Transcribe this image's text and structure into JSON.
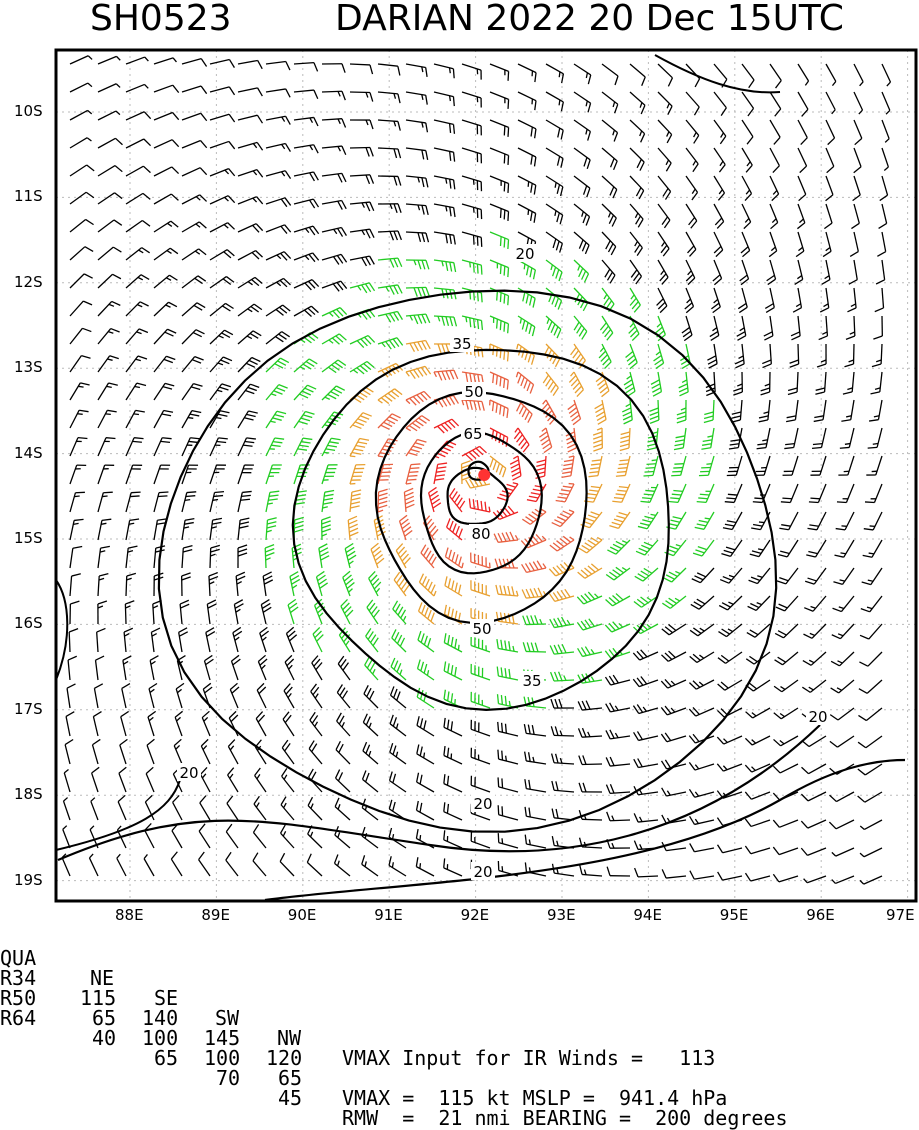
{
  "header": {
    "storm_id": "SH0523",
    "title": "DARIAN 2022 20 Dec 15UTC"
  },
  "axes": {
    "lat_labels": [
      "10S",
      "11S",
      "12S",
      "13S",
      "14S",
      "15S",
      "16S",
      "17S",
      "18S",
      "19S"
    ],
    "lon_labels": [
      "88E",
      "89E",
      "90E",
      "91E",
      "92E",
      "93E",
      "94E",
      "95E",
      "96E",
      "97E"
    ]
  },
  "contour_labels": [
    "20",
    "35",
    "50",
    "65",
    "80",
    "50",
    "35",
    "20",
    "20",
    "20"
  ],
  "colors": {
    "below34": "#000000",
    "gale34": "#22cc22",
    "storm50": "#e8a030",
    "hurricane64": "#e86040",
    "intense": "#ee2222",
    "center": "#ff3333"
  },
  "center": {
    "lat": -14.25,
    "lon": 92.1
  },
  "table": {
    "header": [
      "QUA",
      "NE",
      "SE",
      "SW",
      "NW"
    ],
    "rows": [
      [
        "R34",
        "115",
        "140",
        "145",
        "120"
      ],
      [
        "R50",
        "65",
        "100",
        "100",
        "65"
      ],
      [
        "R64",
        "40",
        "65",
        "70",
        "45"
      ]
    ]
  },
  "info": {
    "line1": "VMAX Input for IR Winds =   113",
    "line3": "VMAX =  115 kt MSLP =  941.4 hPa",
    "line4": "RMW  =  21 nmi BEARING =  200 degrees"
  }
}
